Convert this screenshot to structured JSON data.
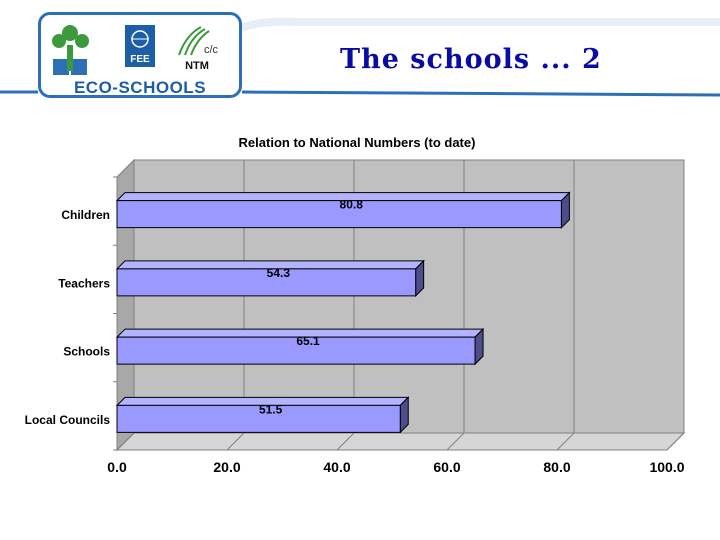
{
  "header": {
    "slide_title": "The schools ... 2",
    "logo_text": "ECO-SCHOOLS",
    "fee_label": "FEE",
    "ntm_label": "NTM"
  },
  "colors": {
    "bar_fill": "#9999ff",
    "bar_side": "#4d4d8c",
    "bar_top": "#b3b3ff",
    "plot_bg": "#c0c0c0",
    "title_blue": "#0a0aa5",
    "logo_blue": "#2d6fb6",
    "logo_green": "#3c9a3c"
  },
  "chart_data": {
    "type": "bar",
    "orientation": "horizontal",
    "title": "Relation to National Numbers (to date)",
    "categories": [
      "Children",
      "Teachers",
      "Schools",
      "Local Councils"
    ],
    "values": [
      80.8,
      54.3,
      65.1,
      51.5
    ],
    "data_labels": [
      "80.8",
      "54.3",
      "65.1",
      "51.5"
    ],
    "xlim": [
      0,
      100
    ],
    "x_ticks": [
      0,
      20,
      40,
      60,
      80,
      100
    ],
    "x_tick_labels": [
      "0.0",
      "20.0",
      "40.0",
      "60.0",
      "80.0",
      "100.0"
    ],
    "grid": true,
    "legend": "none",
    "style": "3d"
  }
}
